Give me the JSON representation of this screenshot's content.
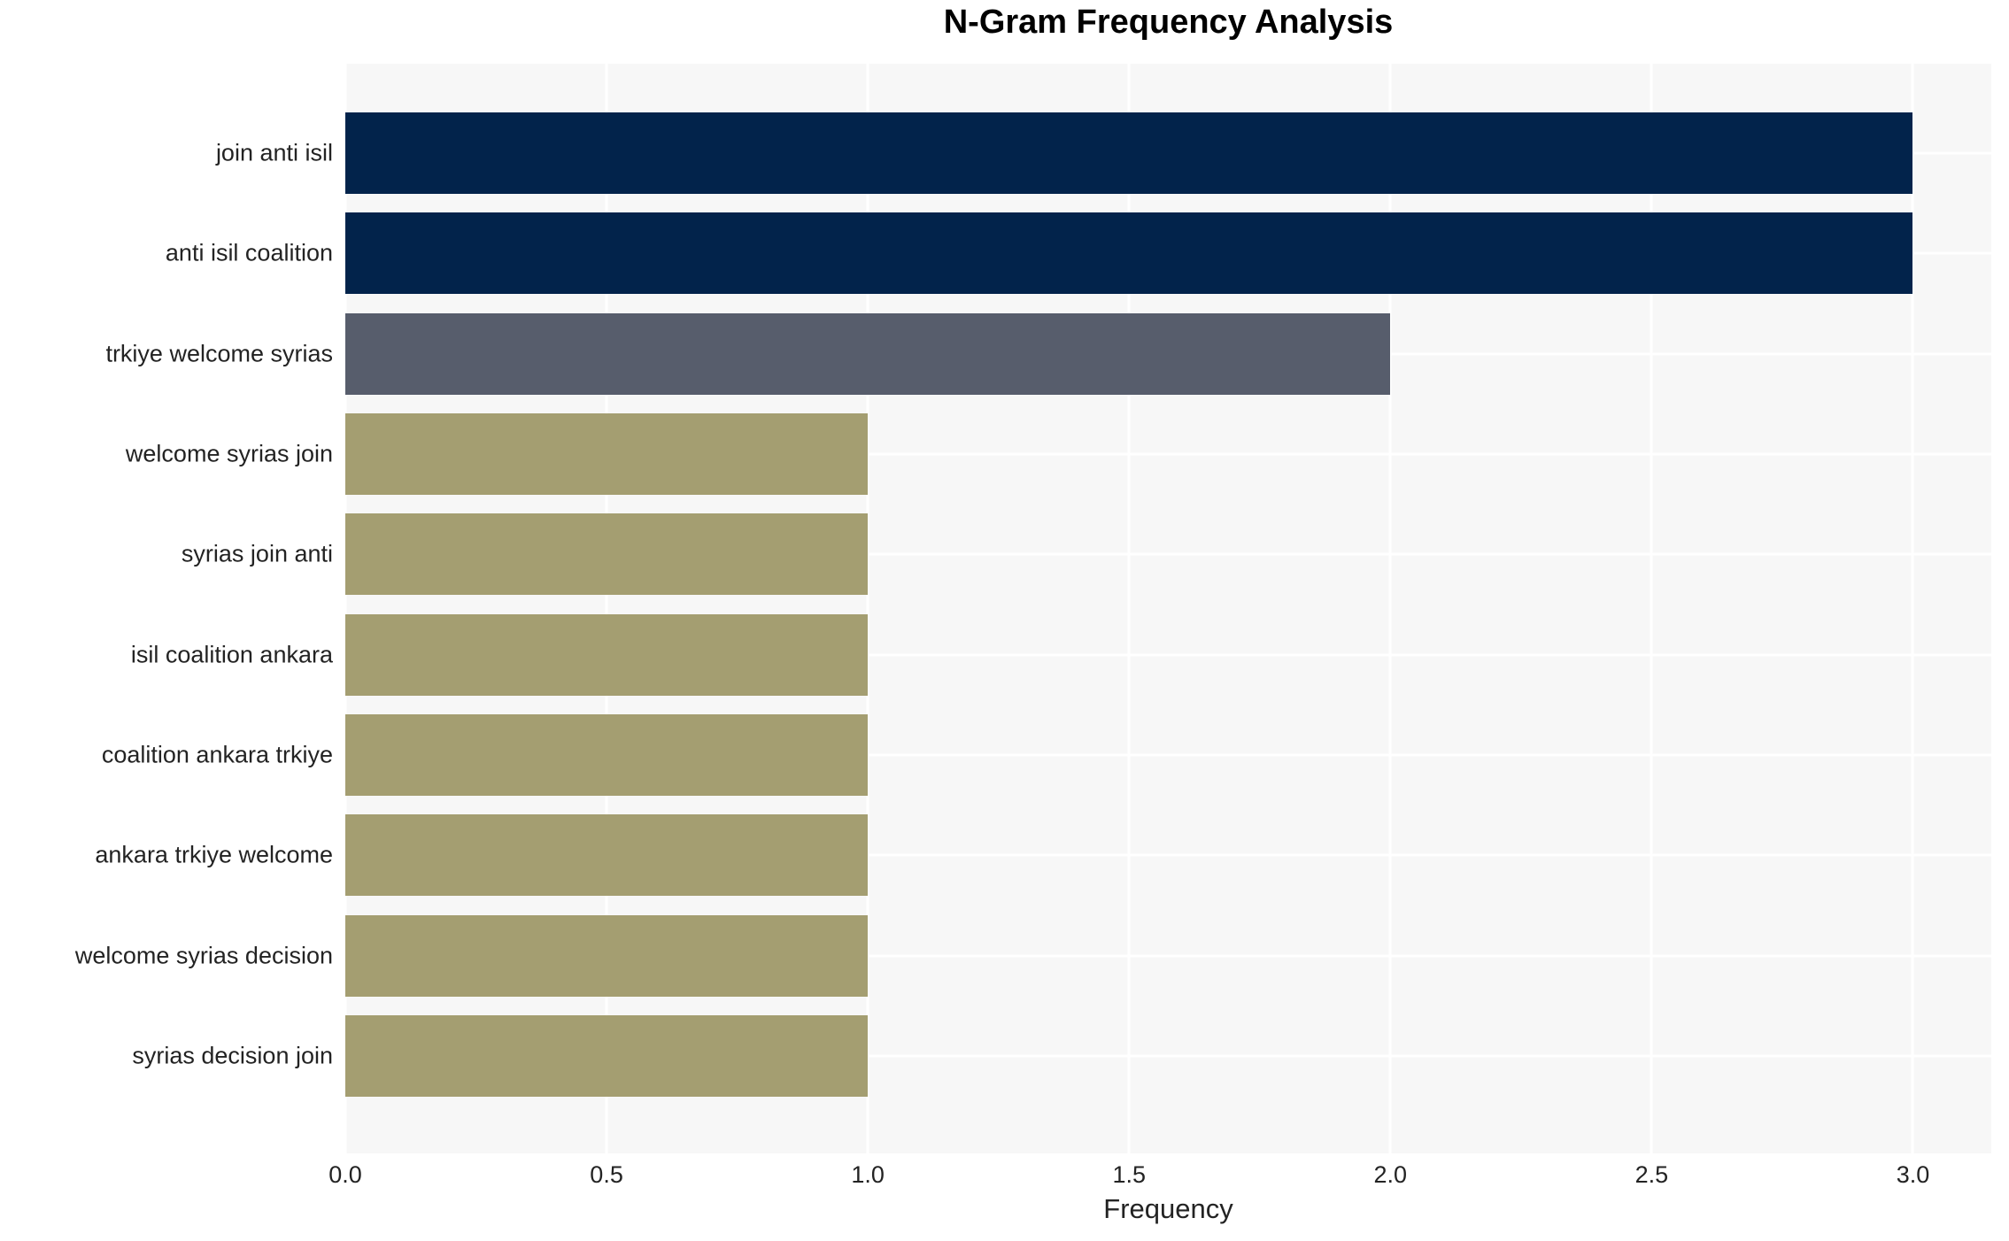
{
  "title": "N-Gram Frequency Analysis",
  "chart_data": {
    "type": "bar",
    "orientation": "horizontal",
    "title": "N-Gram Frequency Analysis",
    "xlabel": "Frequency",
    "ylabel": "",
    "categories": [
      "join anti isil",
      "anti isil coalition",
      "trkiye welcome syrias",
      "welcome syrias join",
      "syrias join anti",
      "isil coalition ankara",
      "coalition ankara trkiye",
      "ankara trkiye welcome",
      "welcome syrias decision",
      "syrias decision join"
    ],
    "values": [
      3,
      3,
      2,
      1,
      1,
      1,
      1,
      1,
      1,
      1
    ],
    "bar_colors": [
      "#02234b",
      "#02234b",
      "#575d6c",
      "#a49e71",
      "#a49e71",
      "#a49e71",
      "#a49e71",
      "#a49e71",
      "#a49e71",
      "#a49e71"
    ],
    "xlim": [
      0,
      3.15
    ],
    "xticks": [
      0.0,
      0.5,
      1.0,
      1.5,
      2.0,
      2.5,
      3.0
    ],
    "xtick_labels": [
      "0.0",
      "0.5",
      "1.0",
      "1.5",
      "2.0",
      "2.5",
      "3.0"
    ],
    "grid": true,
    "legend": "none",
    "plot_bg_color": "#f7f7f7",
    "grid_color": "#ffffff",
    "figure_bg_color": "#ffffff"
  }
}
